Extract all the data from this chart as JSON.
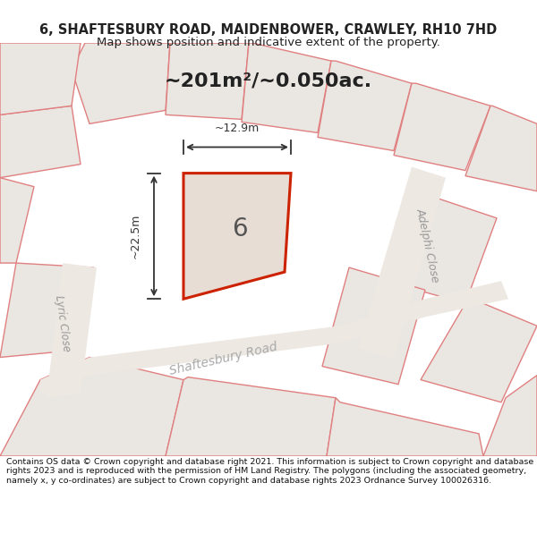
{
  "title": "6, SHAFTESBURY ROAD, MAIDENBOWER, CRAWLEY, RH10 7HD",
  "subtitle": "Map shows position and indicative extent of the property.",
  "area_label": "~201m²/~0.050ac.",
  "dim_height": "~22.5m",
  "dim_width": "~12.9m",
  "plot_number": "6",
  "street_label_adelphi": "Adelphi Close",
  "street_label_shaftesbury": "Shaftesbury Road",
  "street_label_lyric": "Lyric Close",
  "copyright": "Contains OS data © Crown copyright and database right 2021. This information is subject to Crown copyright and database rights 2023 and is reproduced with the permission of HM Land Registry. The polygons (including the associated geometry, namely x, y co-ordinates) are subject to Crown copyright and database rights 2023 Ordnance Survey 100026316.",
  "bg_color": "#ffffff",
  "map_bg": "#f0eeec",
  "parcel_fill": "#eae6e2",
  "parcel_edge": "#e08080",
  "highlight_fill": "#e8ddd5",
  "highlight_edge": "#cc2200",
  "title_color": "#222222",
  "copyright_color": "#111111"
}
